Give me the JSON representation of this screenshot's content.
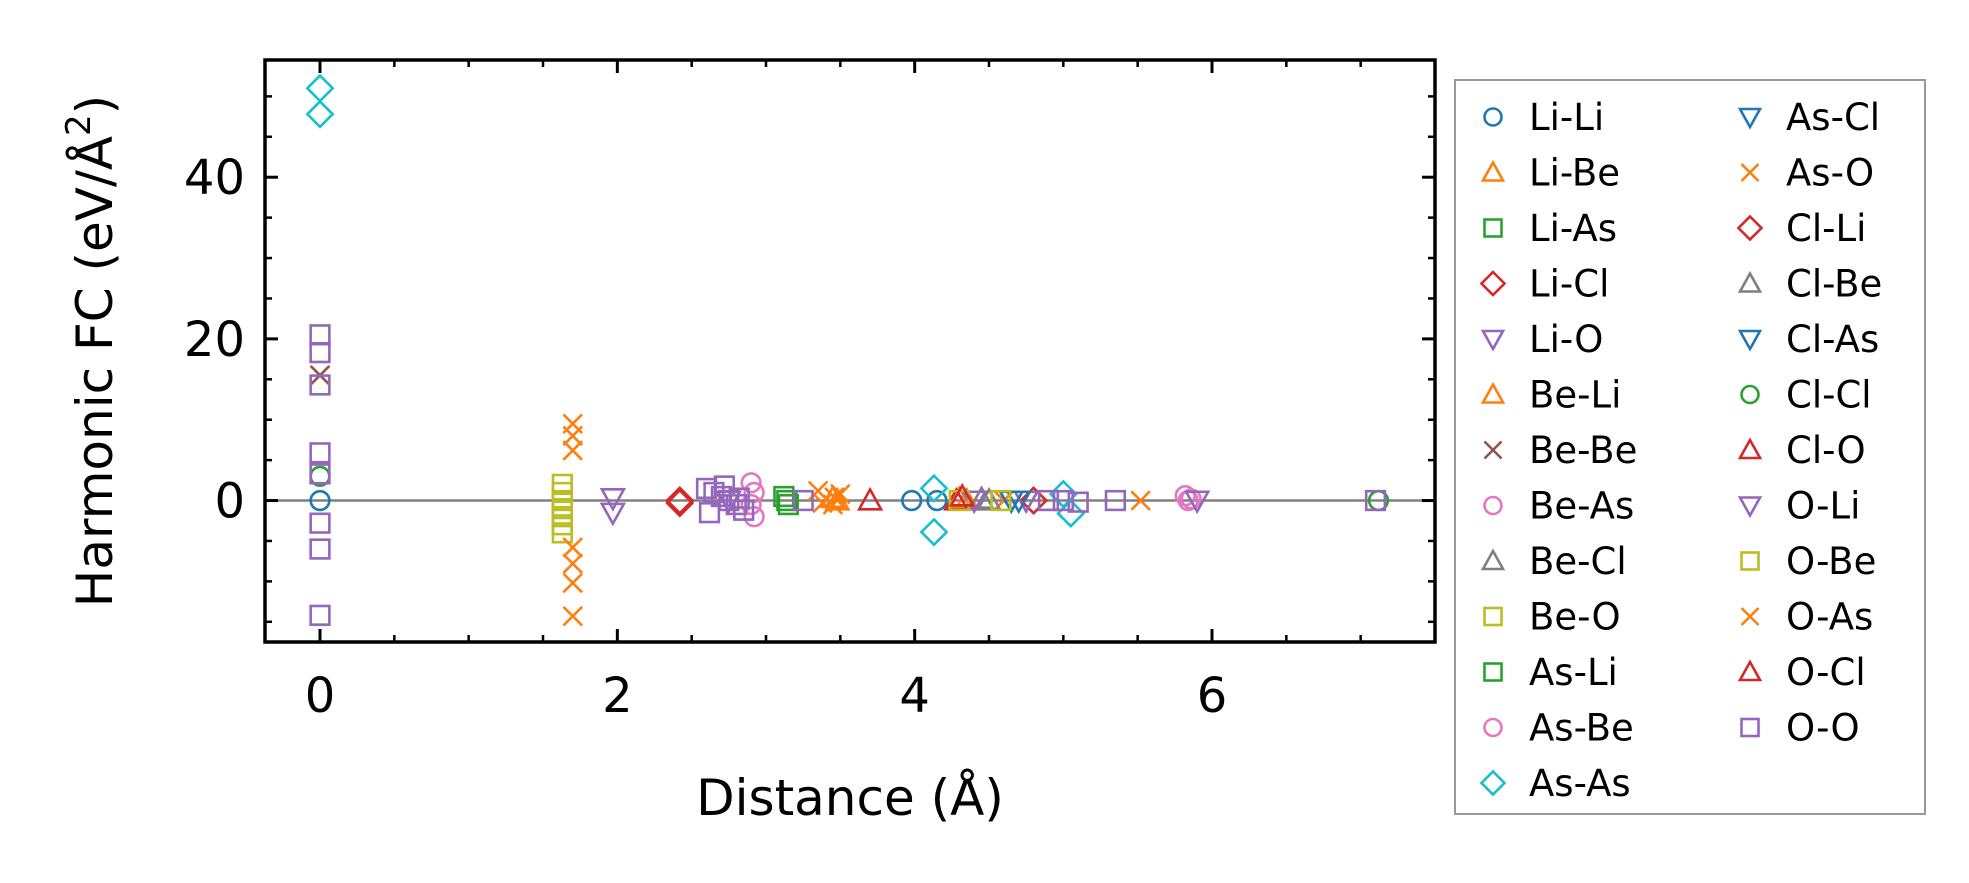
{
  "chart_data": {
    "type": "scatter",
    "xlabel": "Distance (Å)",
    "ylabel_main": "Harmonic FC (eV/Å",
    "ylabel_sup": "2",
    "ylabel_close": ")",
    "xlim": [
      -0.37,
      7.5
    ],
    "ylim": [
      -17.5,
      54.5
    ],
    "xticks": [
      0,
      2,
      4,
      6
    ],
    "yticks": [
      0,
      20,
      40
    ],
    "xtick_labels": [
      "0",
      "2",
      "4",
      "6"
    ],
    "ytick_labels": [
      "0",
      "20",
      "40"
    ],
    "x_minor_step": 0.5,
    "y_minor_step": 5,
    "zero_line": true,
    "grid": false,
    "legend_placement": "outside-right",
    "legend_columns": 2,
    "series": [
      {
        "name": "Li-Li",
        "marker": "circle",
        "color": "#1f77b4",
        "x": [
          0,
          3.98,
          4.15
        ],
        "y": [
          0,
          0,
          0
        ]
      },
      {
        "name": "Li-Be",
        "marker": "triangle-up",
        "color": "#ff7f0e",
        "x": [
          3.45,
          4.3
        ],
        "y": [
          0.3,
          0.2
        ]
      },
      {
        "name": "Li-As",
        "marker": "square",
        "color": "#2ca02c",
        "x": [
          3.12,
          3.15
        ],
        "y": [
          0.5,
          -0.5
        ]
      },
      {
        "name": "Li-Cl",
        "marker": "diamond",
        "color": "#d62728",
        "x": [
          2.42,
          4.8
        ],
        "y": [
          0,
          0
        ]
      },
      {
        "name": "Li-O",
        "marker": "triangle-down",
        "color": "#9467bd",
        "x": [
          1.97,
          1.97,
          2.75,
          4.75
        ],
        "y": [
          0.3,
          -1.5,
          0,
          0
        ]
      },
      {
        "name": "Be-Li",
        "marker": "triangle-up",
        "color": "#ff7f0e",
        "x": [
          3.48,
          4.35
        ],
        "y": [
          0,
          0
        ]
      },
      {
        "name": "Be-Be",
        "marker": "x",
        "color": "#8c564b",
        "x": [
          0
        ],
        "y": [
          15.5
        ]
      },
      {
        "name": "Be-As",
        "marker": "circle",
        "color": "#e377c2",
        "x": [
          2.9,
          2.92,
          2.9,
          2.92,
          5.82,
          5.84
        ],
        "y": [
          2.2,
          1.0,
          -0.5,
          -2.0,
          0.6,
          0
        ]
      },
      {
        "name": "Be-Cl",
        "marker": "triangle-up",
        "color": "#7f7f7f",
        "x": [
          4.45
        ],
        "y": [
          0.2
        ]
      },
      {
        "name": "Be-O",
        "marker": "square",
        "color": "#bcbd22",
        "x": [
          1.63,
          1.63,
          1.63,
          1.63,
          1.63,
          1.63,
          1.63
        ],
        "y": [
          2.0,
          1.0,
          0,
          -1.0,
          -2.0,
          -3.0,
          -4.0
        ]
      },
      {
        "name": "As-Li",
        "marker": "square",
        "color": "#2ca02c",
        "x": [
          3.14
        ],
        "y": [
          0
        ]
      },
      {
        "name": "As-Be",
        "marker": "circle",
        "color": "#e377c2",
        "x": [
          5.86
        ],
        "y": [
          0.2
        ]
      },
      {
        "name": "As-As",
        "marker": "diamond",
        "color": "#17becf",
        "x": [
          0,
          0,
          4.13,
          4.13,
          5.0,
          5.05
        ],
        "y": [
          51,
          47.8,
          1.5,
          -3.9,
          0.8,
          -1.6
        ]
      },
      {
        "name": "As-Cl",
        "marker": "triangle-down",
        "color": "#1f77b4",
        "x": [
          4.7
        ],
        "y": [
          0
        ]
      },
      {
        "name": "As-O",
        "marker": "x",
        "color": "#ff7f0e",
        "x": [
          1.7,
          1.7,
          1.7,
          1.7,
          1.7,
          1.7,
          1.7,
          3.35,
          3.45,
          3.5,
          4.6,
          5.52
        ],
        "y": [
          9.5,
          8.0,
          6.2,
          -5.8,
          -7.8,
          -10.2,
          -14.3,
          1.2,
          -0.5,
          0.8,
          0,
          0
        ]
      },
      {
        "name": "Cl-Li",
        "marker": "diamond",
        "color": "#d62728",
        "x": [
          2.42
        ],
        "y": [
          -0.3
        ]
      },
      {
        "name": "Cl-Be",
        "marker": "triangle-up",
        "color": "#7f7f7f",
        "x": [
          4.5
        ],
        "y": [
          0
        ]
      },
      {
        "name": "Cl-As",
        "marker": "triangle-down",
        "color": "#1f77b4",
        "x": [
          4.65
        ],
        "y": [
          0
        ]
      },
      {
        "name": "Cl-Cl",
        "marker": "circle",
        "color": "#2ca02c",
        "x": [
          0,
          7.12
        ],
        "y": [
          3.0,
          0
        ]
      },
      {
        "name": "Cl-O",
        "marker": "triangle-up",
        "color": "#d62728",
        "x": [
          3.7,
          4.28
        ],
        "y": [
          0,
          0
        ]
      },
      {
        "name": "O-Li",
        "marker": "triangle-down",
        "color": "#9467bd",
        "x": [
          5.9,
          4.4
        ],
        "y": [
          0,
          0
        ]
      },
      {
        "name": "O-Be",
        "marker": "square",
        "color": "#bcbd22",
        "x": [
          4.3,
          4.58
        ],
        "y": [
          0,
          0
        ]
      },
      {
        "name": "O-As",
        "marker": "x",
        "color": "#ff7f0e",
        "x": [
          3.38,
          3.46
        ],
        "y": [
          -0.3,
          0.4
        ]
      },
      {
        "name": "O-Cl",
        "marker": "triangle-up",
        "color": "#d62728",
        "x": [
          4.32
        ],
        "y": [
          0.5
        ]
      },
      {
        "name": "O-O",
        "marker": "square",
        "color": "#9467bd",
        "x": [
          0,
          0,
          0,
          0,
          0,
          0,
          0,
          0,
          2.6,
          2.65,
          2.7,
          2.75,
          2.8,
          2.85,
          2.62,
          2.72,
          2.82,
          3.25,
          4.9,
          5.0,
          5.1,
          5.35,
          7.1
        ],
        "y": [
          20.5,
          18.3,
          14.3,
          5.9,
          3.3,
          -2.8,
          -6.0,
          -14.2,
          1.5,
          1.0,
          0.5,
          0,
          -0.5,
          -1.2,
          -1.5,
          1.8,
          0.3,
          0,
          0,
          0,
          -0.2,
          0,
          0
        ]
      }
    ]
  }
}
